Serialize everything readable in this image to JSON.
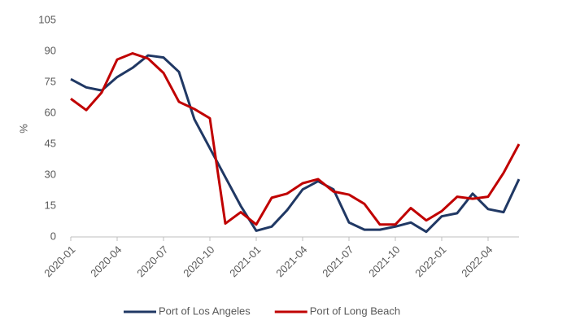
{
  "chart_data": {
    "type": "line",
    "ylabel": "%",
    "categories": [
      "2020-01",
      null,
      null,
      "2020-04",
      null,
      null,
      "2020-07",
      null,
      null,
      "2020-10",
      null,
      null,
      "2021-01",
      null,
      null,
      "2021-04",
      null,
      null,
      "2021-07",
      null,
      null,
      "2021-10",
      null,
      null,
      "2022-01",
      null,
      null,
      "2022-04",
      null,
      null
    ],
    "series": [
      {
        "name": "Port of Los Angeles",
        "color": "#203864",
        "values": [
          76.5,
          72.5,
          71,
          77.5,
          82,
          88,
          87,
          80,
          57,
          43,
          29,
          15,
          3,
          5,
          13,
          23,
          27,
          23,
          7,
          3.5,
          3.5,
          5,
          7,
          2.5,
          10,
          11.5,
          21,
          13.5,
          12,
          28
        ]
      },
      {
        "name": "Port of Long Beach",
        "color": "#c00000",
        "values": [
          67,
          61.5,
          70,
          86,
          89,
          86.5,
          79.5,
          65.5,
          62,
          57.5,
          6.5,
          12,
          6,
          19,
          21,
          26,
          28,
          22,
          20.5,
          16,
          6,
          6,
          14,
          8,
          12.5,
          19.5,
          18.5,
          19.5,
          31,
          45
        ]
      }
    ],
    "ylim": [
      0,
      105
    ],
    "yticks": [
      0,
      15,
      30,
      45,
      60,
      75,
      90,
      105
    ],
    "grid": false,
    "legend": "bottom"
  }
}
